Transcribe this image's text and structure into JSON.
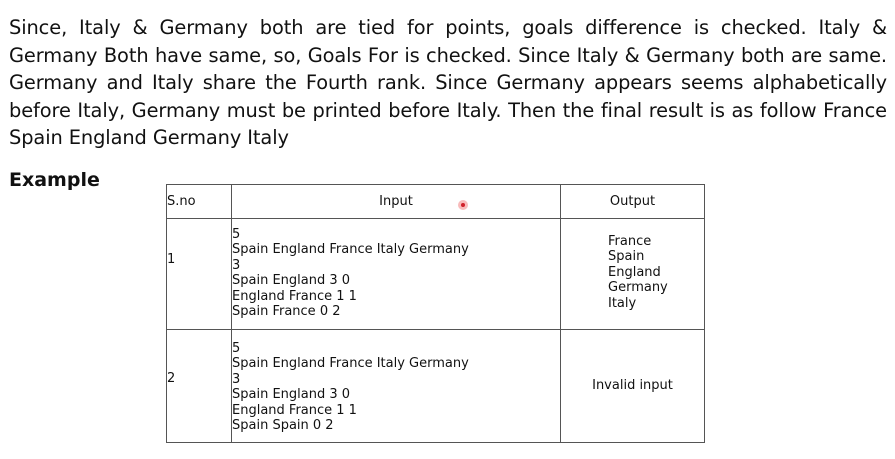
{
  "paragraph": "Since, Italy & Germany both are tied for points, goals difference is checked. Italy & Germany Both have same, so, Goals For is checked. Since Italy & Germany both are same. Germany and Italy share the Fourth  rank. Since Germany appears seems alphabetically before Italy, Germany must be printed before Italy. Then the final result is as follow  France Spain England Germany Italy",
  "heading": "Example",
  "table": {
    "headers": {
      "sno": "S.no",
      "input": "Input",
      "output": "Output"
    },
    "rows": [
      {
        "sno": "1",
        "input": [
          "5",
          "Spain England France Italy Germany",
          "3",
          "Spain England 3 0",
          "England France 1 1",
          "Spain France 0 2"
        ],
        "output": [
          "France",
          "Spain",
          "England",
          "Germany",
          "Italy"
        ]
      },
      {
        "sno": "2",
        "input": [
          "5",
          "Spain England France Italy Germany",
          "3",
          "Spain England 3 0",
          "England France 1 1",
          "Spain Spain 0 2"
        ],
        "output": [
          "Invalid input"
        ]
      }
    ]
  },
  "colors": {
    "text": "#111111",
    "border": "#555555",
    "cursor": "#d0202a"
  }
}
